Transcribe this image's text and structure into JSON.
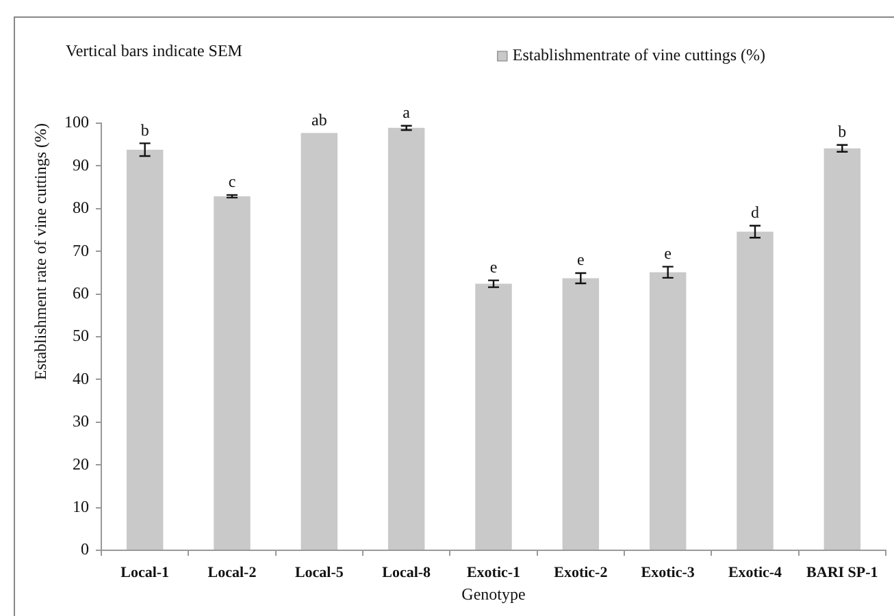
{
  "chart_data": {
    "type": "bar",
    "annotations": [
      "Vertical bars indicate SEM"
    ],
    "xlabel": "Genotype",
    "ylabel": "Establishment rate of vine cuttings (%)",
    "categories": [
      "Local-1",
      "Local-2",
      "Local-5",
      "Local-8",
      "Exotic-1",
      "Exotic-2",
      "Exotic-3",
      "Exotic-4",
      "BARI SP-1"
    ],
    "series": [
      {
        "name": "Establishmentrate of vine cuttings (%)",
        "color": "#c9c9c9",
        "values": [
          93.8,
          82.9,
          97.7,
          98.9,
          62.4,
          63.7,
          65.1,
          74.6,
          94.1
        ],
        "errors": [
          1.5,
          0.3,
          null,
          0.5,
          0.8,
          1.2,
          1.3,
          1.4,
          0.8
        ],
        "value_labels": [
          "b",
          "c",
          "ab",
          "a",
          "e",
          "e",
          "e",
          "d",
          "b"
        ]
      }
    ],
    "ylim": [
      0,
      100
    ],
    "yticks": [
      0,
      10,
      20,
      30,
      40,
      50,
      60,
      70,
      80,
      90,
      100
    ],
    "grid": false,
    "legend": "top right"
  }
}
